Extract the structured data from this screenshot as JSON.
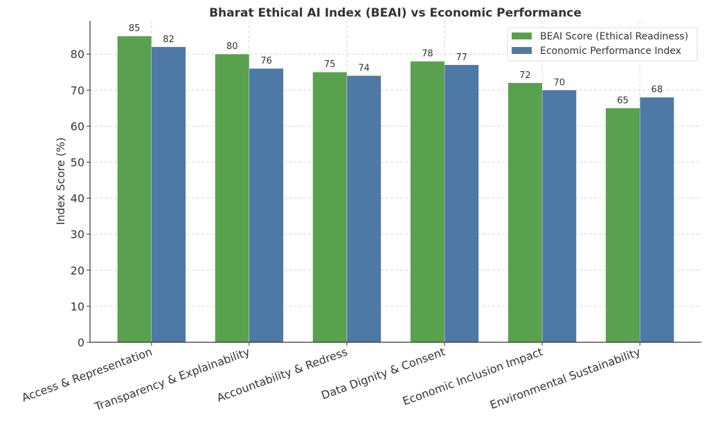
{
  "chart_data": {
    "type": "bar",
    "title": "Bharat Ethical AI Index (BEAI) vs Economic Performance",
    "xlabel": "",
    "ylabel": "Index Score (%)",
    "categories": [
      "Access & Representation",
      "Transparency & Explainability",
      "Accountability & Redress",
      "Data Dignity & Consent",
      "Economic Inclusion Impact",
      "Environmental Sustainability"
    ],
    "series": [
      {
        "name": "BEAI Score (Ethical Readiness)",
        "values": [
          85,
          80,
          75,
          78,
          72,
          65
        ],
        "color": "#59a14f"
      },
      {
        "name": "Economic Performance Index",
        "values": [
          82,
          76,
          74,
          77,
          70,
          68
        ],
        "color": "#4e79a7"
      }
    ],
    "ylim": [
      0,
      89.25
    ],
    "yticks": [
      0,
      10,
      20,
      30,
      40,
      50,
      60,
      70,
      80
    ],
    "grid": true,
    "legend": "top-right",
    "data_labels": true
  }
}
